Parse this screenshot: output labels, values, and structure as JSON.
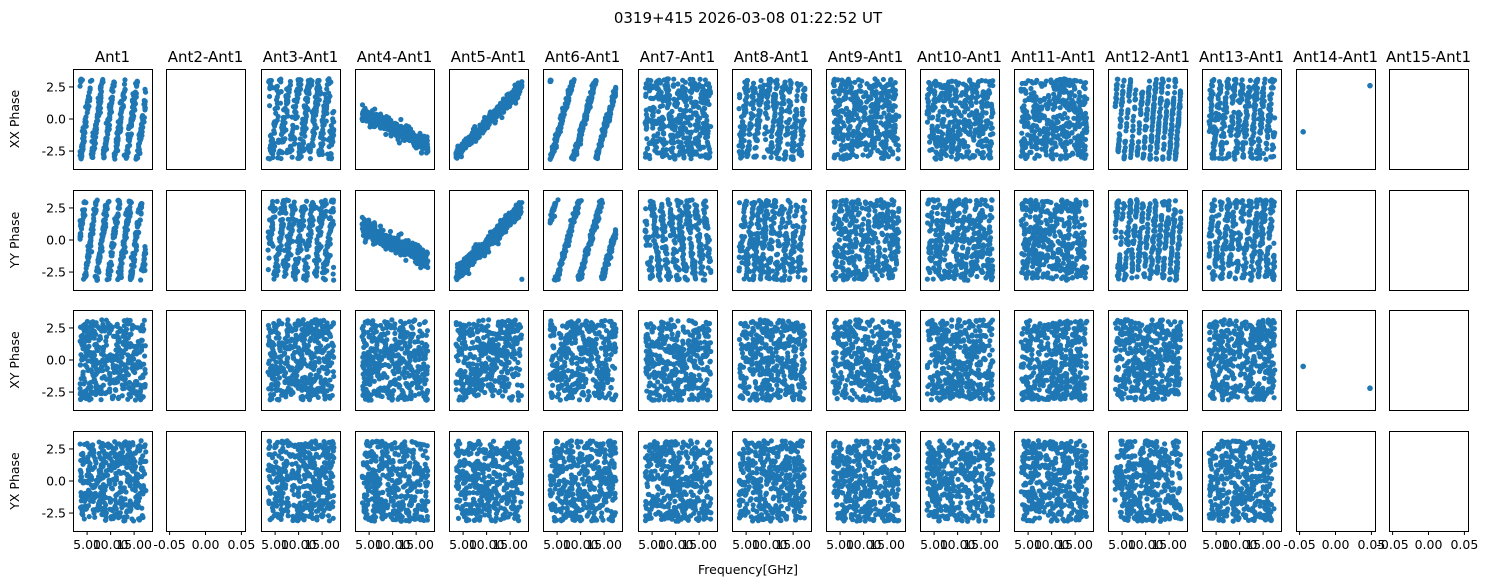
{
  "chart_data": {
    "type": "scatter",
    "title": "0319+415 2026-03-08 01:22:52 UT",
    "xlabel": "Frequency[GHz]",
    "columns": [
      "Ant1",
      "Ant2-Ant1",
      "Ant3-Ant1",
      "Ant4-Ant1",
      "Ant5-Ant1",
      "Ant6-Ant1",
      "Ant7-Ant1",
      "Ant8-Ant1",
      "Ant9-Ant1",
      "Ant10-Ant1",
      "Ant11-Ant1",
      "Ant12-Ant1",
      "Ant13-Ant1",
      "Ant14-Ant1",
      "Ant15-Ant1"
    ],
    "rows": [
      "XX Phase",
      "YY Phase",
      "XY Phase",
      "YX Phase"
    ],
    "ylim": [
      -3.9,
      3.9
    ],
    "yticks": [
      "2.5",
      "0.0",
      "-2.5"
    ],
    "ytick_values": [
      2.5,
      0.0,
      -2.5
    ],
    "xlim": [
      2.0,
      18.8
    ],
    "xticks": [
      "5.00",
      "10.00",
      "15.00"
    ],
    "xtick_values": [
      5.0,
      10.0,
      15.0
    ],
    "empty_xlim": [
      -0.055,
      0.055
    ],
    "empty_xticks": [
      "-0.05",
      "0.00",
      "0.05"
    ],
    "empty_xtick_values": [
      -0.05,
      0.0,
      0.05
    ],
    "empty_columns": [
      "Ant2-Ant1",
      "Ant15-Ant1"
    ],
    "sparse_column": "Ant14-Ant1",
    "sparse_points": {
      "XX Phase": [
        [
          -0.045,
          -1.0
        ],
        [
          0.048,
          2.6
        ]
      ],
      "YY Phase": [],
      "XY Phase": [
        [
          -0.045,
          -0.5
        ],
        [
          0.048,
          -2.2
        ]
      ],
      "YX Phase": []
    },
    "freq_range": [
      3.5,
      17.5
    ],
    "phase_wrap": [
      -3.1416,
      3.1416
    ],
    "series_color": "#1f77b4",
    "panels": {
      "Ant1": {
        "XX Phase": {
          "slope": 2.6,
          "scatter": 0.5
        },
        "YY Phase": {
          "slope": 2.6,
          "scatter": 0.5
        },
        "XY Phase": {
          "slope": 0.0,
          "scatter": 9
        },
        "YX Phase": {
          "slope": 0.0,
          "scatter": 9
        }
      },
      "Ant3-Ant1": {
        "XX Phase": {
          "slope": 3.0,
          "scatter": 0.9
        },
        "YY Phase": {
          "slope": 3.0,
          "scatter": 0.9
        },
        "XY Phase": {
          "slope": 0.0,
          "scatter": 9
        },
        "YX Phase": {
          "slope": 0.0,
          "scatter": 9
        }
      },
      "Ant4-Ant1": {
        "XX Phase": {
          "slope": -0.18,
          "intercept": 1.1,
          "scatter": 0.3
        },
        "YY Phase": {
          "slope": -0.18,
          "intercept": 1.6,
          "scatter": 0.35
        },
        "XY Phase": {
          "slope": -0.1,
          "intercept": 0.5,
          "scatter": 2.2
        },
        "YX Phase": {
          "slope": 0.0,
          "scatter": 9
        }
      },
      "Ant5-Ant1": {
        "XX Phase": {
          "slope": 0.38,
          "intercept": -4.1,
          "scatter": 0.25
        },
        "YY Phase": {
          "slope": 0.38,
          "intercept": -4.1,
          "scatter": 0.3
        },
        "XY Phase": {
          "slope": 0.3,
          "intercept": -3.3,
          "scatter": 1.8
        },
        "YX Phase": {
          "slope": 0.0,
          "scatter": 9
        }
      },
      "Ant6-Ant1": {
        "XX Phase": {
          "slope": 1.3,
          "scatter": 0.25
        },
        "YY Phase": {
          "slope": 1.3,
          "scatter": 0.25
        },
        "XY Phase": {
          "slope": 1.3,
          "scatter": 1.5
        },
        "YX Phase": {
          "slope": 0.0,
          "scatter": 9
        }
      },
      "Ant7-Ant1": {
        "XX Phase": {
          "slope": -3.4,
          "scatter": 1.5
        },
        "YY Phase": {
          "slope": -3.4,
          "scatter": 0.9
        },
        "XY Phase": {
          "slope": 0.0,
          "scatter": 9
        },
        "YX Phase": {
          "slope": 0.0,
          "scatter": 9
        }
      },
      "Ant8-Ant1": {
        "XX Phase": {
          "slope": 4.0,
          "scatter": 0.9
        },
        "YY Phase": {
          "slope": 4.0,
          "scatter": 1.0
        },
        "XY Phase": {
          "slope": 0.0,
          "scatter": 9
        },
        "YX Phase": {
          "slope": 0.0,
          "scatter": 9
        }
      },
      "Ant9-Ant1": {
        "XX Phase": {
          "slope": 0.0,
          "scatter": 9
        },
        "YY Phase": {
          "slope": 5.0,
          "scatter": 1.4
        },
        "XY Phase": {
          "slope": 0.0,
          "scatter": 9
        },
        "YX Phase": {
          "slope": 0.0,
          "scatter": 9
        }
      },
      "Ant10-Ant1": {
        "XX Phase": {
          "slope": 5.5,
          "scatter": 1.3
        },
        "YY Phase": {
          "slope": 5.5,
          "scatter": 1.3
        },
        "XY Phase": {
          "slope": 0.0,
          "scatter": 9
        },
        "YX Phase": {
          "slope": 0.0,
          "scatter": 9
        }
      },
      "Ant11-Ant1": {
        "XX Phase": {
          "slope": 6.0,
          "scatter": 1.6
        },
        "YY Phase": {
          "slope": 6.0,
          "scatter": 1.4
        },
        "XY Phase": {
          "slope": 0.0,
          "scatter": 9
        },
        "YX Phase": {
          "slope": 0.0,
          "scatter": 9
        }
      },
      "Ant12-Ant1": {
        "XX Phase": {
          "slope": 4.6,
          "scatter": 0.3
        },
        "YY Phase": {
          "slope": 4.6,
          "scatter": 0.6
        },
        "XY Phase": {
          "slope": 0.0,
          "scatter": 9
        },
        "YX Phase": {
          "slope": 0.0,
          "scatter": 9
        }
      },
      "Ant13-Ant1": {
        "XX Phase": {
          "slope": 4.0,
          "scatter": 0.9
        },
        "YY Phase": {
          "slope": 4.0,
          "scatter": 0.9
        },
        "XY Phase": {
          "slope": 0.0,
          "scatter": 9
        },
        "YX Phase": {
          "slope": 0.0,
          "scatter": 9
        }
      }
    },
    "points_per_panel": 420,
    "grid": false
  }
}
